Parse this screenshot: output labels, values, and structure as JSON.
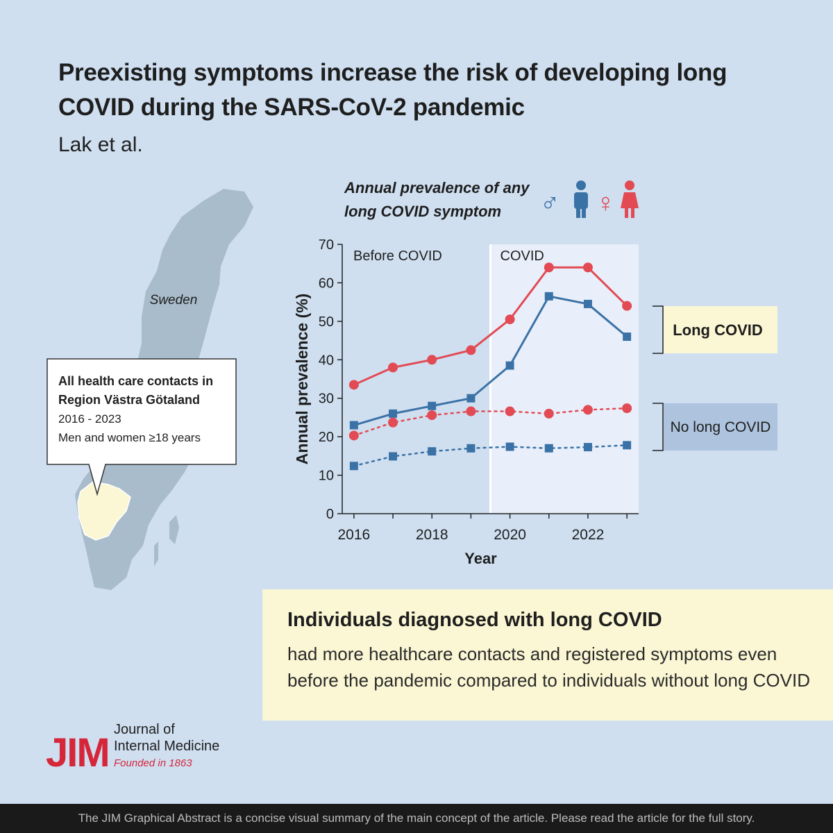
{
  "header": {
    "title": "Preexisting symptoms increase the risk of developing long COVID during the SARS-CoV-2 pandemic",
    "authors": "Lak et al."
  },
  "map": {
    "country_label": "Sweden",
    "callout": {
      "heading": "All health care contacts in Region Västra Götaland",
      "years": "2016 - 2023",
      "population": "Men and women ≥18 years"
    },
    "colors": {
      "land": "#a9bccb",
      "region": "#fbf7d4"
    }
  },
  "chart_data": {
    "type": "line",
    "title": "Annual prevalence of any long COVID symptom",
    "xlabel": "Year",
    "ylabel": "Annual prevalence (%)",
    "x": [
      2016,
      2017,
      2018,
      2019,
      2020,
      2021,
      2022,
      2023
    ],
    "xticks": [
      2016,
      2018,
      2020,
      2022
    ],
    "yticks": [
      0,
      10,
      20,
      30,
      40,
      50,
      60,
      70
    ],
    "ylim": [
      0,
      70
    ],
    "xlim": [
      2015.7,
      2023.3
    ],
    "periods": [
      {
        "label": "Before COVID",
        "start": 2015.7,
        "end": 2019.5
      },
      {
        "label": "COVID",
        "start": 2019.5,
        "end": 2023.3
      }
    ],
    "series": [
      {
        "name": "Women, long COVID",
        "group": "Long COVID",
        "sex": "female",
        "marker": "circle",
        "style": "solid",
        "color": "#e24a54",
        "values": [
          33.5,
          38,
          40,
          42.5,
          50.5,
          64,
          64,
          54
        ]
      },
      {
        "name": "Men, long COVID",
        "group": "Long COVID",
        "sex": "male",
        "marker": "square",
        "style": "solid",
        "color": "#3b72a6",
        "values": [
          23,
          26,
          28,
          30,
          38.5,
          56.5,
          54.5,
          46
        ]
      },
      {
        "name": "Women, no long COVID",
        "group": "No long COVID",
        "sex": "female",
        "marker": "circle",
        "style": "dotted",
        "color": "#e24a54",
        "values": [
          20.3,
          23.7,
          25.6,
          26.6,
          26.6,
          26,
          27,
          27.4
        ]
      },
      {
        "name": "Men, no long COVID",
        "group": "No long COVID",
        "sex": "male",
        "marker": "square",
        "style": "dotted",
        "color": "#3b72a6",
        "values": [
          12.4,
          14.9,
          16.2,
          17,
          17.4,
          17,
          17.3,
          17.8
        ]
      }
    ],
    "group_labels": [
      {
        "label": "Long COVID",
        "y_range": [
          46,
          64
        ]
      },
      {
        "label": "No long COVID",
        "y_range": [
          17,
          29
        ]
      }
    ],
    "legend": {
      "male_symbol": "♂",
      "female_symbol": "♀"
    }
  },
  "summary": {
    "heading": "Individuals diagnosed with long COVID",
    "body": "had more healthcare contacts and registered symptoms even before the pandemic compared to individuals without long COVID"
  },
  "logo": {
    "mark": "JIM",
    "line1": "Journal of",
    "line2": "Internal Medicine",
    "tagline": "Founded in 1863",
    "color": "#d5263a"
  },
  "footer": {
    "text": "The JIM Graphical Abstract is a concise visual summary of the main concept of the article. Please read the article for the full story."
  },
  "colors": {
    "background": "#cfdff0",
    "male": "#3b72a6",
    "female": "#e24a54",
    "covid_band": "#e8effa",
    "long_covid_box": "#fbf7d4",
    "no_long_covid_box": "#adc3de"
  }
}
